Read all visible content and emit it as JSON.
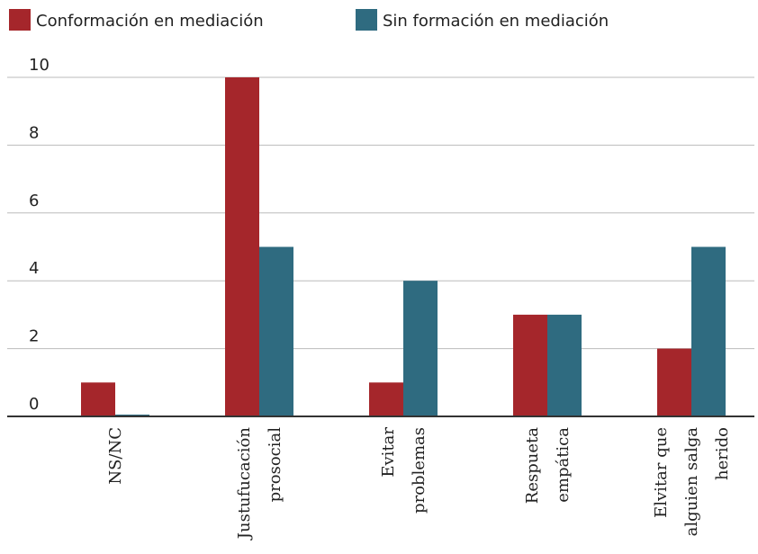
{
  "chart_data": {
    "type": "bar",
    "categories": [
      [
        "NS/NC"
      ],
      [
        "Justufucación",
        "prosocial"
      ],
      [
        "Evitar",
        "problemas"
      ],
      [
        "Respueta",
        "empática"
      ],
      [
        "Elvitar que",
        "alguien salga",
        "herido"
      ]
    ],
    "series": [
      {
        "name": "Conformación en mediación",
        "color": "#a5262b",
        "values": [
          1,
          10,
          1,
          3,
          2
        ]
      },
      {
        "name": "Sin formación en mediación",
        "color": "#2f6b80",
        "values": [
          0,
          5,
          4,
          3,
          5
        ]
      }
    ],
    "ylim": [
      0,
      10
    ],
    "yticks": [
      0,
      2,
      4,
      6,
      8,
      10
    ],
    "grid": true
  }
}
